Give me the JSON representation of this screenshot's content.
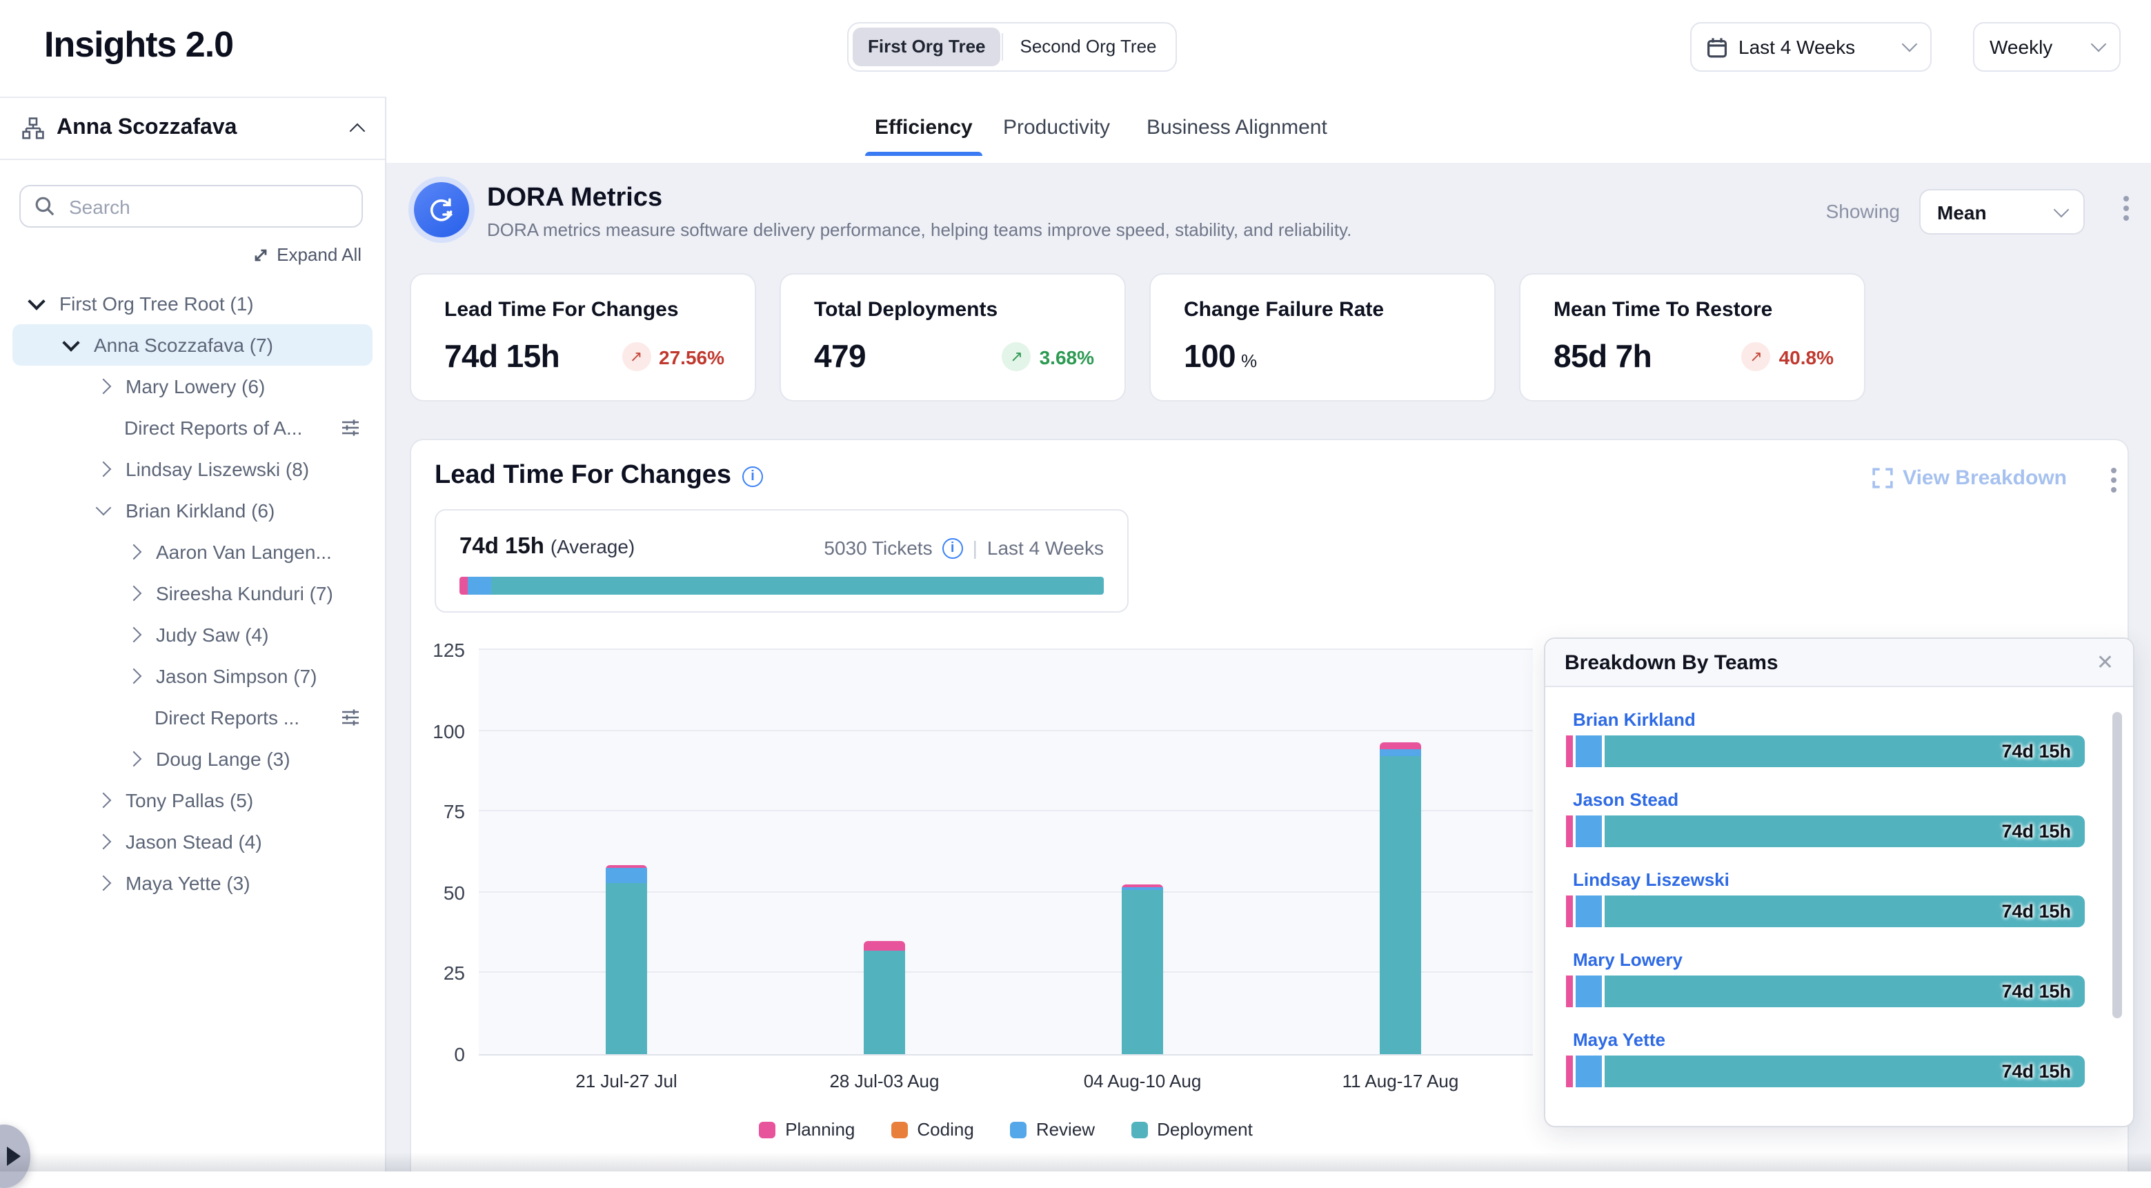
{
  "app": {
    "title": "Insights 2.0"
  },
  "header": {
    "org_tree": [
      "First Org Tree",
      "Second Org Tree"
    ],
    "active_org_tree": "First Org Tree",
    "date_range": "Last 4 Weeks",
    "granularity": "Weekly"
  },
  "sidebar": {
    "owner": "Anna Scozzafava",
    "search_placeholder": "Search",
    "expand_all_label": "Expand All",
    "tree": [
      {
        "label": "First Org Tree Root (1)",
        "level": 0,
        "chevron": "down",
        "selected": false
      },
      {
        "label": "Anna Scozzafava (7)",
        "level": 1,
        "chevron": "down",
        "selected": true
      },
      {
        "label": "Mary Lowery (6)",
        "level": 2,
        "chevron": "right"
      },
      {
        "label": "Direct Reports of A...",
        "level": 2,
        "chevron": "none",
        "has_filter_icon": true
      },
      {
        "label": "Lindsay Liszewski (8)",
        "level": 2,
        "chevron": "right"
      },
      {
        "label": "Brian Kirkland (6)",
        "level": 2,
        "chevron": "down"
      },
      {
        "label": "Aaron Van Langen...",
        "level": 3,
        "chevron": "right"
      },
      {
        "label": "Sireesha Kunduri (7)",
        "level": 3,
        "chevron": "right"
      },
      {
        "label": "Judy Saw (4)",
        "level": 3,
        "chevron": "right"
      },
      {
        "label": "Jason Simpson (7)",
        "level": 3,
        "chevron": "right"
      },
      {
        "label": "Direct Reports ...",
        "level": 3,
        "chevron": "none",
        "has_filter_icon": true
      },
      {
        "label": "Doug Lange (3)",
        "level": 3,
        "chevron": "right"
      },
      {
        "label": "Tony Pallas (5)",
        "level": 2,
        "chevron": "right"
      },
      {
        "label": "Jason Stead (4)",
        "level": 2,
        "chevron": "right"
      },
      {
        "label": "Maya Yette (3)",
        "level": 2,
        "chevron": "right"
      }
    ]
  },
  "main": {
    "tabs": [
      "Efficiency",
      "Productivity",
      "Business Alignment"
    ],
    "active_tab": "Efficiency"
  },
  "dora": {
    "title": "DORA Metrics",
    "description": "DORA metrics measure software delivery performance, helping teams improve speed, stability, and reliability.",
    "showing_label": "Showing",
    "showing_value": "Mean"
  },
  "metric_cards": [
    {
      "title": "Lead Time For Changes",
      "value": "74d 15h",
      "delta": "27.56%",
      "trend": "up",
      "sentiment": "negative"
    },
    {
      "title": "Total Deployments",
      "value": "479",
      "delta": "3.68%",
      "trend": "up",
      "sentiment": "positive"
    },
    {
      "title": "Change Failure Rate",
      "value": "100",
      "unit": "%"
    },
    {
      "title": "Mean Time To Restore",
      "value": "85d 7h",
      "delta": "40.8%",
      "trend": "up",
      "sentiment": "negative"
    }
  ],
  "lead_time_section": {
    "title": "Lead Time For Changes",
    "view_breakdown_label": "View Breakdown",
    "average_value": "74d 15h",
    "average_label": "(Average)",
    "tickets_label": "5030 Tickets",
    "period_label": "Last 4 Weeks",
    "average_bar_segments": [
      "Planning",
      "Review",
      "Deployment"
    ]
  },
  "chart_data": {
    "type": "bar",
    "stacked": true,
    "categories": [
      "21 Jul-27 Jul",
      "28 Jul-03 Aug",
      "04 Aug-10 Aug",
      "11 Aug-17 Aug"
    ],
    "series": [
      {
        "name": "Planning",
        "color": "#e8549b",
        "values": [
          0.8,
          2.6,
          0.9,
          2.2
        ]
      },
      {
        "name": "Coding",
        "color": "#e8803c",
        "values": [
          0,
          0,
          0,
          0
        ]
      },
      {
        "name": "Review",
        "color": "#54a7e8",
        "values": [
          4.7,
          0.4,
          0.7,
          2.0
        ]
      },
      {
        "name": "Deployment",
        "color": "#52b3bf",
        "values": [
          53.0,
          31.8,
          50.8,
          92.3
        ]
      }
    ],
    "ylim": [
      0,
      125
    ],
    "yticks": [
      0,
      25,
      50,
      75,
      100,
      125
    ],
    "grid": true,
    "legend_position": "bottom"
  },
  "breakdown_panel": {
    "title": "Breakdown By Teams",
    "teams": [
      {
        "name": "Brian Kirkland",
        "value": "74d 15h"
      },
      {
        "name": "Jason Stead",
        "value": "74d 15h"
      },
      {
        "name": "Lindsay Liszewski",
        "value": "74d 15h"
      },
      {
        "name": "Mary Lowery",
        "value": "74d 15h"
      },
      {
        "name": "Maya Yette",
        "value": "74d 15h"
      }
    ]
  },
  "colors": {
    "accent": "#3a7af2",
    "negative": "#c0392f",
    "positive": "#2c9a52",
    "link": "#2d6ae4",
    "selected_row_bg": "#e4f1fb"
  }
}
